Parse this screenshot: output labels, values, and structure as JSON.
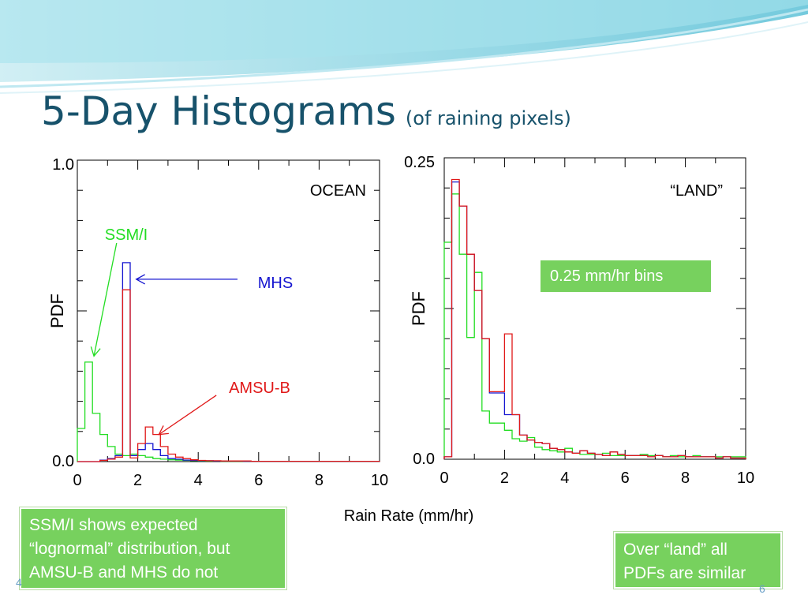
{
  "slide": {
    "title": "5-Day Histograms",
    "subtitle": "(of raining pixels)",
    "note_left_lines": [
      "SSM/I shows expected",
      "“lognormal” distribution, but",
      "AMSU-B and MHS do not"
    ],
    "note_right_lines": [
      "Over  “land” all",
      "PDFs are similar"
    ],
    "bins_label": "0.25 mm/hr bins",
    "shared_xlabel": "Rain Rate (mm/hr)",
    "page_fragment_left": "4",
    "page_fragment_right": "6",
    "colors": {
      "accent_blue": "#17526b",
      "green_box": "#77d15e",
      "ssmi": "#22dd22",
      "mhs": "#1515d0",
      "amsub": "#e01818"
    }
  },
  "chart_data": [
    {
      "type": "line",
      "region_label": "OCEAN",
      "ylabel": "PDF",
      "xlim": [
        0,
        10
      ],
      "ylim": [
        0,
        1.0
      ],
      "ytick_labels": [
        "1.0",
        "0.0"
      ],
      "xtick_labels": [
        "0",
        "2",
        "4",
        "6",
        "8",
        "10"
      ],
      "xticks": [
        0,
        2,
        4,
        6,
        8,
        10
      ],
      "bin_width": 0.25,
      "series": [
        {
          "name": "SSM/I",
          "color": "#22dd22",
          "values": [
            0.11,
            0.33,
            0.16,
            0.09,
            0.05,
            0.025,
            0.02,
            0.025,
            0.02,
            0.015,
            0.01,
            0.008,
            0.006,
            0.005,
            0.004,
            0.003,
            0.002,
            0.002,
            0.002,
            0.001,
            0.001,
            0.001,
            0.001,
            0.001,
            0.001,
            0.001,
            0.001,
            0.001,
            0.001,
            0.001,
            0.001,
            0.001,
            0.001,
            0.001,
            0.001,
            0.001,
            0.001,
            0.001,
            0.001,
            0.001
          ]
        },
        {
          "name": "MHS",
          "color": "#1515d0",
          "values": [
            0.0,
            0.0,
            0.0,
            0.005,
            0.01,
            0.02,
            0.66,
            0.02,
            0.04,
            0.06,
            0.04,
            0.02,
            0.01,
            0.008,
            0.005,
            0.004,
            0.003,
            0.003,
            0.002,
            0.002,
            0.002,
            0.002,
            0.001,
            0.001,
            0.001,
            0.001,
            0.001,
            0.001,
            0.001,
            0.001,
            0.001,
            0.001,
            0.001,
            0.001,
            0.001,
            0.001,
            0.001,
            0.001,
            0.001,
            0.001
          ]
        },
        {
          "name": "AMSU-B",
          "color": "#e01818",
          "values": [
            0.0,
            0.0,
            0.0,
            0.004,
            0.008,
            0.015,
            0.57,
            0.012,
            0.06,
            0.115,
            0.09,
            0.05,
            0.025,
            0.015,
            0.01,
            0.006,
            0.004,
            0.003,
            0.003,
            0.002,
            0.002,
            0.002,
            0.002,
            0.001,
            0.001,
            0.001,
            0.001,
            0.001,
            0.001,
            0.001,
            0.001,
            0.001,
            0.001,
            0.001,
            0.001,
            0.001,
            0.001,
            0.001,
            0.001,
            0.001
          ]
        }
      ],
      "annotations": [
        {
          "text": "SSM/I",
          "color": "#22dd22",
          "target": [
            0.55,
            0.35
          ],
          "from": [
            1.3,
            0.725
          ]
        },
        {
          "text": "MHS",
          "color": "#1515d0",
          "target": [
            1.95,
            0.605
          ],
          "from": [
            5.3,
            0.605
          ]
        },
        {
          "text": "AMSU-B",
          "color": "#e01818",
          "target": [
            2.7,
            0.09
          ],
          "from": [
            4.6,
            0.22
          ]
        }
      ]
    },
    {
      "type": "line",
      "region_label": "“LAND”",
      "ylabel": "PDF",
      "xlim": [
        0,
        10
      ],
      "ylim": [
        0,
        0.25
      ],
      "ytick_labels": [
        "0.25",
        "0.0"
      ],
      "xtick_labels": [
        "0",
        "2",
        "4",
        "6",
        "8",
        "10"
      ],
      "xticks": [
        0,
        2,
        4,
        6,
        8,
        10
      ],
      "bin_width": 0.25,
      "series": [
        {
          "name": "SSM/I",
          "color": "#22dd22",
          "values": [
            0.18,
            0.22,
            0.17,
            0.101,
            0.155,
            0.04,
            0.03,
            0.03,
            0.024,
            0.017,
            0.015,
            0.018,
            0.01,
            0.008,
            0.007,
            0.006,
            0.009,
            0.005,
            0.004,
            0.004,
            0.004,
            0.005,
            0.003,
            0.003,
            0.003,
            0.003,
            0.004,
            0.003,
            0.003,
            0.002,
            0.003,
            0.002,
            0.002,
            0.003,
            0.002,
            0.002,
            0.002,
            0.002,
            0.002,
            0.002
          ]
        },
        {
          "name": "MHS",
          "color": "#1515d0",
          "values": [
            0.002,
            0.23,
            0.21,
            0.17,
            0.14,
            0.1,
            0.055,
            0.055,
            0.037,
            0.037,
            0.02,
            0.016,
            0.014,
            0.013,
            0.009,
            0.008,
            0.006,
            0.005,
            0.007,
            0.005,
            0.004,
            0.003,
            0.006,
            0.004,
            0.003,
            0.003,
            0.003,
            0.002,
            0.003,
            0.002,
            0.002,
            0.003,
            0.002,
            0.002,
            0.002,
            0.002,
            0.001,
            0.002,
            0.001,
            0.001
          ]
        },
        {
          "name": "AMSU-B",
          "color": "#e01818",
          "values": [
            0.002,
            0.232,
            0.21,
            0.17,
            0.14,
            0.1,
            0.056,
            0.056,
            0.104,
            0.037,
            0.02,
            0.016,
            0.014,
            0.013,
            0.009,
            0.008,
            0.006,
            0.005,
            0.007,
            0.005,
            0.004,
            0.003,
            0.006,
            0.004,
            0.003,
            0.003,
            0.003,
            0.002,
            0.003,
            0.002,
            0.002,
            0.003,
            0.002,
            0.002,
            0.002,
            0.002,
            0.001,
            0.002,
            0.001,
            0.001
          ]
        }
      ]
    }
  ]
}
